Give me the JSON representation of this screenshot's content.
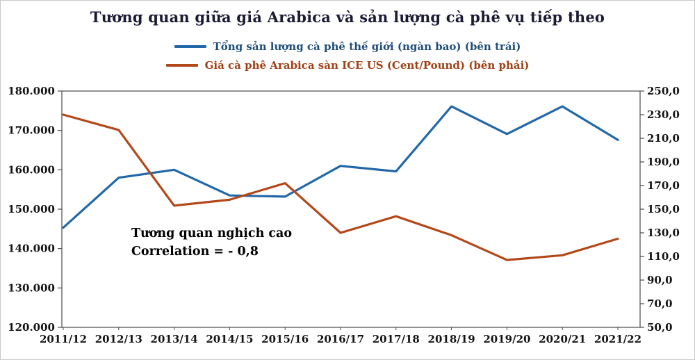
{
  "colors": {
    "title": "#1b1b35",
    "axis_text": "#141414",
    "axis_line": "#4a4a4a",
    "background": "#ffffff",
    "annotation": "#000000"
  },
  "chart_data": {
    "type": "line",
    "title": "Tương quan giữa giá Arabica và sản lượng cà phê vụ tiếp theo",
    "xlabel": "",
    "ylabel": "",
    "grid": false,
    "legend_position": "top",
    "categories": [
      "2011/12",
      "2012/13",
      "2013/14",
      "2014/15",
      "2015/16",
      "2016/17",
      "2017/18",
      "2018/19",
      "2019/20",
      "2020/21",
      "2021/22"
    ],
    "series": [
      {
        "name": "Tổng sản lượng cà phê thế giới (ngàn bao) (bên trái)",
        "axis": "left",
        "color": "#2268a8",
        "label_color": "#1f4e79",
        "values": [
          145300,
          158000,
          160000,
          153500,
          153200,
          161000,
          159600,
          176100,
          169100,
          176100,
          167600
        ]
      },
      {
        "name": "Giá cà phê Arabica sàn ICE US (Cent/Pound) (bên phải)",
        "axis": "right",
        "color": "#b3481b",
        "label_color": "#a04115",
        "values": [
          230,
          217,
          153,
          158,
          172,
          130,
          144,
          128,
          107,
          111,
          125
        ]
      }
    ],
    "left_axis": {
      "min": 120000,
      "max": 180000,
      "step": 10000,
      "tick_labels": [
        "120.000",
        "130.000",
        "140.000",
        "150.000",
        "160.000",
        "170.000",
        "180.000"
      ]
    },
    "right_axis": {
      "min": 50,
      "max": 250,
      "step": 20,
      "tick_labels": [
        "50,0",
        "70,0",
        "90,0",
        "110,0",
        "130,0",
        "150,0",
        "170,0",
        "190,0",
        "210,0",
        "230,0",
        "250,0"
      ]
    },
    "annotations": [
      "Tương quan nghịch cao",
      "Correlation = - 0,8"
    ]
  }
}
